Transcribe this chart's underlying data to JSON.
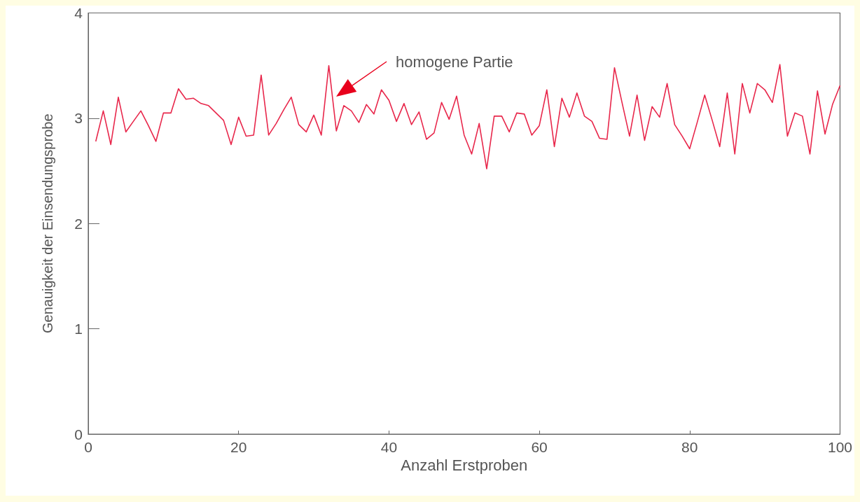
{
  "chart_data": {
    "type": "line",
    "xlabel": "Anzahl Erstproben",
    "ylabel": "Genauigkeit der Einsendungsprobe",
    "x": [
      1,
      2,
      3,
      4,
      5,
      6,
      7,
      8,
      9,
      10,
      11,
      12,
      13,
      14,
      15,
      16,
      17,
      18,
      19,
      20,
      21,
      22,
      23,
      24,
      25,
      26,
      27,
      28,
      29,
      30,
      31,
      32,
      33,
      34,
      35,
      36,
      37,
      38,
      39,
      40,
      41,
      42,
      43,
      44,
      45,
      46,
      47,
      48,
      49,
      50,
      51,
      52,
      53,
      54,
      55,
      56,
      57,
      58,
      59,
      60,
      61,
      62,
      63,
      64,
      65,
      66,
      67,
      68,
      69,
      70,
      71,
      72,
      73,
      74,
      75,
      76,
      77,
      78,
      79,
      80,
      81,
      82,
      83,
      84,
      85,
      86,
      87,
      88,
      89,
      90,
      91,
      92,
      93,
      94,
      95,
      96,
      97,
      98,
      99,
      100
    ],
    "series": [
      {
        "color": "#e8274b",
        "values": [
          2.78,
          3.07,
          2.75,
          3.2,
          2.87,
          2.97,
          3.07,
          2.93,
          2.78,
          3.05,
          3.05,
          3.28,
          3.18,
          3.19,
          3.14,
          3.12,
          3.05,
          2.98,
          2.75,
          3.01,
          2.83,
          2.84,
          3.41,
          2.84,
          2.95,
          3.08,
          3.2,
          2.94,
          2.87,
          3.03,
          2.84,
          3.5,
          2.88,
          3.12,
          3.07,
          2.96,
          3.13,
          3.04,
          3.27,
          3.17,
          2.97,
          3.14,
          2.94,
          3.06,
          2.8,
          2.86,
          3.15,
          2.99,
          3.21,
          2.84,
          2.66,
          2.95,
          2.52,
          3.02,
          3.02,
          2.87,
          3.05,
          3.04,
          2.84,
          2.93,
          3.27,
          2.73,
          3.19,
          3.01,
          3.24,
          3.02,
          2.97,
          2.81,
          2.8,
          3.48,
          3.15,
          2.83,
          3.22,
          2.79,
          3.11,
          3.01,
          3.33,
          2.94,
          2.83,
          2.71,
          2.96,
          3.22,
          2.98,
          2.73,
          3.24,
          2.66,
          3.33,
          3.05,
          3.33,
          3.27,
          3.15,
          3.51,
          2.83,
          3.05,
          3.02,
          2.66,
          3.26,
          2.85,
          3.13,
          3.31
        ]
      }
    ],
    "xlim": [
      0,
      100
    ],
    "xticks": [
      0,
      20,
      40,
      60,
      80,
      100
    ],
    "ylim": [
      0,
      4
    ],
    "yticks": [
      0,
      1,
      2,
      3,
      4
    ],
    "grid": false,
    "marker": "none",
    "line_style": "solid",
    "annotations": [
      "homogene Partie"
    ]
  }
}
